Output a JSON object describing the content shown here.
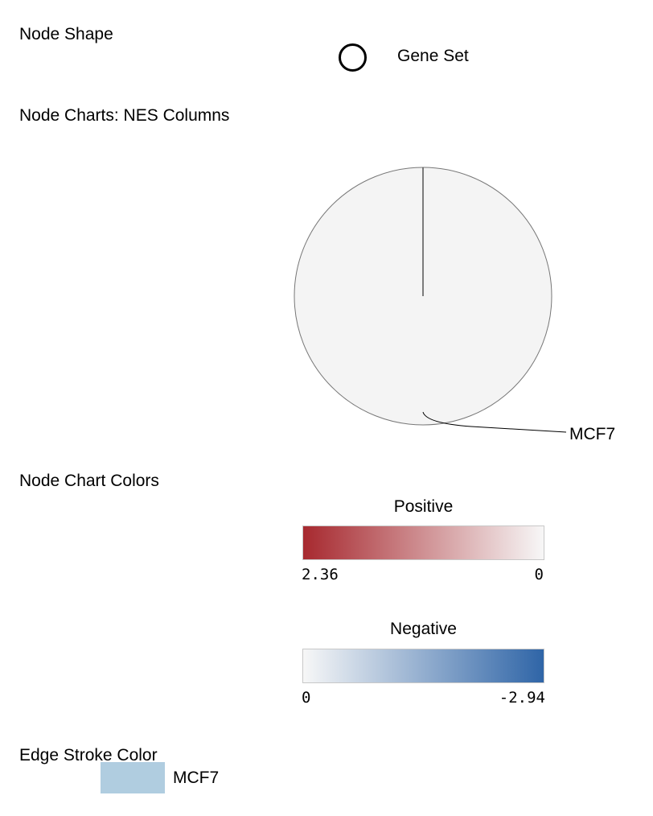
{
  "sections": {
    "node_shape": {
      "title": "Node Shape",
      "shape_icon": "circle-outline-icon",
      "shape_label": "Gene Set"
    },
    "node_charts": {
      "title": "Node Charts: NES Columns"
    },
    "node_chart_colors": {
      "title": "Node Chart Colors",
      "positive": {
        "title": "Positive",
        "min_label": "2.36",
        "max_label": "0",
        "color_start": "#a7292f",
        "color_end": "#f7f7f7"
      },
      "negative": {
        "title": "Negative",
        "min_label": "0",
        "max_label": "-2.94",
        "color_start": "#f7f7f7",
        "color_end": "#2f65a7"
      }
    },
    "edge_stroke_color": {
      "title": "Edge Stroke Color",
      "items": [
        {
          "label": "MCF7",
          "color": "#b0cde0"
        }
      ]
    }
  },
  "chart_data": {
    "type": "pie",
    "categories": [
      "MCF7"
    ],
    "values": [
      1
    ],
    "slice_fill": "#f4f4f4",
    "slice_stroke": "#777777",
    "title": ""
  }
}
